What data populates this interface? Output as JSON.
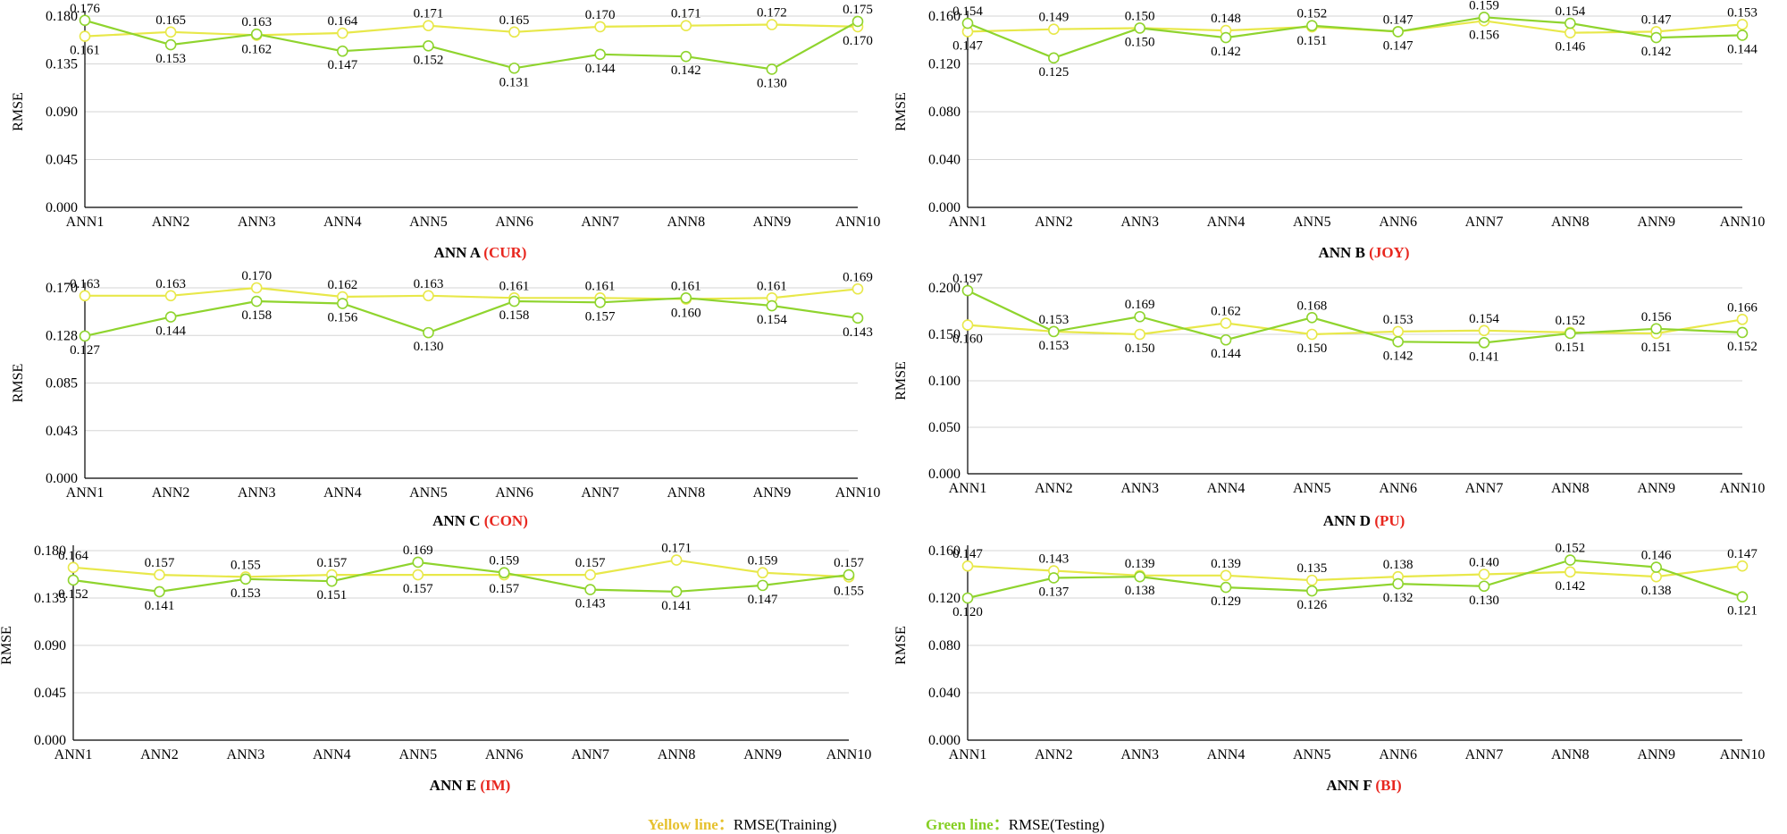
{
  "colors": {
    "training": "#e8e84a",
    "testing": "#8fd42e",
    "title_highlight": "#e8271f",
    "grid": "#d6d6d6",
    "axis": "#000000",
    "legend_training_key": "#e6c12f",
    "legend_testing_key": "#86cf24"
  },
  "legend": {
    "training_key": "Yellow line：",
    "training_desc": "RMSE(Training)",
    "testing_key": "Green line：",
    "testing_desc": "RMSE(Testing)"
  },
  "chart_data": [
    {
      "type": "line",
      "id": "A",
      "title": "ANN A",
      "title_highlight": "(CUR)",
      "ylabel": "RMSE",
      "ylim": [
        0,
        0.18
      ],
      "yticks": [
        "0.000",
        "0.045",
        "0.090",
        "0.135",
        "0.180"
      ],
      "categories": [
        "ANN1",
        "ANN2",
        "ANN3",
        "ANN4",
        "ANN5",
        "ANN6",
        "ANN7",
        "ANN8",
        "ANN9",
        "ANN10"
      ],
      "series": [
        {
          "name": "RMSE(Training)",
          "values": [
            0.161,
            0.165,
            0.162,
            0.164,
            0.171,
            0.165,
            0.17,
            0.171,
            0.172,
            0.17
          ],
          "labels": [
            "0.161",
            "0.165",
            "0.162",
            "0.164",
            "0.171",
            "0.165",
            "0.170",
            "0.171",
            "0.172",
            "0.170"
          ]
        },
        {
          "name": "RMSE(Testing)",
          "values": [
            0.176,
            0.153,
            0.163,
            0.147,
            0.152,
            0.131,
            0.144,
            0.142,
            0.13,
            0.175
          ],
          "labels": [
            "0.176",
            "0.153",
            "0.163",
            "0.147",
            "0.152",
            "0.131",
            "0.144",
            "0.142",
            "0.130",
            "0.175"
          ]
        }
      ]
    },
    {
      "type": "line",
      "id": "B",
      "title": "ANN B",
      "title_highlight": "(JOY)",
      "ylabel": "RMSE",
      "ylim": [
        0,
        0.16
      ],
      "yticks": [
        "0.000",
        "0.040",
        "0.080",
        "0.120",
        "0.160"
      ],
      "categories": [
        "ANN1",
        "ANN2",
        "ANN3",
        "ANN4",
        "ANN5",
        "ANN6",
        "ANN7",
        "ANN8",
        "ANN9",
        "ANN10"
      ],
      "series": [
        {
          "name": "RMSE(Training)",
          "values": [
            0.147,
            0.149,
            0.15,
            0.148,
            0.151,
            0.147,
            0.156,
            0.146,
            0.147,
            0.153
          ],
          "labels": [
            "0.147",
            "0.149",
            "0.150",
            "0.148",
            "0.151",
            "0.147",
            "0.156",
            "0.146",
            "0.147",
            "0.153"
          ]
        },
        {
          "name": "RMSE(Testing)",
          "values": [
            0.154,
            0.125,
            0.15,
            0.142,
            0.152,
            0.147,
            0.159,
            0.154,
            0.142,
            0.144
          ],
          "labels": [
            "0.154",
            "0.125",
            "0.150",
            "0.142",
            "0.152",
            "0.147",
            "0.159",
            "0.154",
            "0.142",
            "0.144"
          ]
        }
      ]
    },
    {
      "type": "line",
      "id": "C",
      "title": "ANN C",
      "title_highlight": "(CON)",
      "ylabel": "RMSE",
      "ylim": [
        0,
        0.17
      ],
      "yticks": [
        "0.000",
        "0.043",
        "0.085",
        "0.128",
        "0.170"
      ],
      "categories": [
        "ANN1",
        "ANN2",
        "ANN3",
        "ANN4",
        "ANN5",
        "ANN6",
        "ANN7",
        "ANN8",
        "ANN9",
        "ANN10"
      ],
      "series": [
        {
          "name": "RMSE(Training)",
          "values": [
            0.163,
            0.163,
            0.17,
            0.162,
            0.163,
            0.161,
            0.161,
            0.16,
            0.161,
            0.169
          ],
          "labels": [
            "0.163",
            "0.163",
            "0.170",
            "0.162",
            "0.163",
            "0.161",
            "0.161",
            "0.160",
            "0.161",
            "0.169"
          ]
        },
        {
          "name": "RMSE(Testing)",
          "values": [
            0.127,
            0.144,
            0.158,
            0.156,
            0.13,
            0.158,
            0.157,
            0.161,
            0.154,
            0.143
          ],
          "labels": [
            "0.127",
            "0.144",
            "0.158",
            "0.156",
            "0.130",
            "0.158",
            "0.157",
            "0.161",
            "0.154",
            "0.143"
          ]
        }
      ]
    },
    {
      "type": "line",
      "id": "D",
      "title": "ANN D",
      "title_highlight": "(PU)",
      "ylabel": "RMSE",
      "ylim": [
        0,
        0.2
      ],
      "yticks": [
        "0.000",
        "0.050",
        "0.100",
        "0.150",
        "0.200"
      ],
      "categories": [
        "ANN1",
        "ANN2",
        "ANN3",
        "ANN4",
        "ANN5",
        "ANN6",
        "ANN7",
        "ANN8",
        "ANN9",
        "ANN10"
      ],
      "series": [
        {
          "name": "RMSE(Training)",
          "values": [
            0.16,
            0.153,
            0.15,
            0.162,
            0.15,
            0.153,
            0.154,
            0.152,
            0.151,
            0.166
          ],
          "labels": [
            "0.160",
            "0.153",
            "0.150",
            "0.162",
            "0.150",
            "0.153",
            "0.154",
            "0.152",
            "0.151",
            "0.166"
          ]
        },
        {
          "name": "RMSE(Testing)",
          "values": [
            0.197,
            0.153,
            0.169,
            0.144,
            0.168,
            0.142,
            0.141,
            0.151,
            0.156,
            0.152
          ],
          "labels": [
            "0.197",
            "0.153",
            "0.169",
            "0.144",
            "0.168",
            "0.142",
            "0.141",
            "0.151",
            "0.156",
            "0.152"
          ]
        }
      ]
    },
    {
      "type": "line",
      "id": "E",
      "title": "ANN E",
      "title_highlight": "(IM)",
      "ylabel": "RMSE",
      "ylim": [
        0,
        0.18
      ],
      "yticks": [
        "0.000",
        "0.045",
        "0.090",
        "0.135",
        "0.180"
      ],
      "categories": [
        "ANN1",
        "ANN2",
        "ANN3",
        "ANN4",
        "ANN5",
        "ANN6",
        "ANN7",
        "ANN8",
        "ANN9",
        "ANN10"
      ],
      "series": [
        {
          "name": "RMSE(Training)",
          "values": [
            0.164,
            0.157,
            0.155,
            0.157,
            0.157,
            0.157,
            0.157,
            0.171,
            0.159,
            0.155
          ],
          "labels": [
            "0.164",
            "0.157",
            "0.155",
            "0.157",
            "0.157",
            "0.157",
            "0.157",
            "0.171",
            "0.159",
            "0.155"
          ]
        },
        {
          "name": "RMSE(Testing)",
          "values": [
            0.152,
            0.141,
            0.153,
            0.151,
            0.169,
            0.159,
            0.143,
            0.141,
            0.147,
            0.157
          ],
          "labels": [
            "0.152",
            "0.141",
            "0.153",
            "0.151",
            "0.169",
            "0.159",
            "0.143",
            "0.141",
            "0.147",
            "0.157"
          ]
        }
      ]
    },
    {
      "type": "line",
      "id": "F",
      "title": "ANN F",
      "title_highlight": "(BI)",
      "ylabel": "RMSE",
      "ylim": [
        0,
        0.16
      ],
      "yticks": [
        "0.000",
        "0.040",
        "0.080",
        "0.120",
        "0.160"
      ],
      "categories": [
        "ANN1",
        "ANN2",
        "ANN3",
        "ANN4",
        "ANN5",
        "ANN6",
        "ANN7",
        "ANN8",
        "ANN9",
        "ANN10"
      ],
      "series": [
        {
          "name": "RMSE(Training)",
          "values": [
            0.147,
            0.143,
            0.139,
            0.139,
            0.135,
            0.138,
            0.14,
            0.142,
            0.138,
            0.147
          ],
          "labels": [
            "0.147",
            "0.143",
            "0.139",
            "0.139",
            "0.135",
            "0.138",
            "0.140",
            "0.142",
            "0.138",
            "0.147"
          ]
        },
        {
          "name": "RMSE(Testing)",
          "values": [
            0.12,
            0.137,
            0.138,
            0.129,
            0.126,
            0.132,
            0.13,
            0.152,
            0.146,
            0.121
          ],
          "labels": [
            "0.120",
            "0.137",
            "0.138",
            "0.129",
            "0.126",
            "0.132",
            "0.130",
            "0.152",
            "0.146",
            "0.121"
          ]
        }
      ]
    }
  ]
}
